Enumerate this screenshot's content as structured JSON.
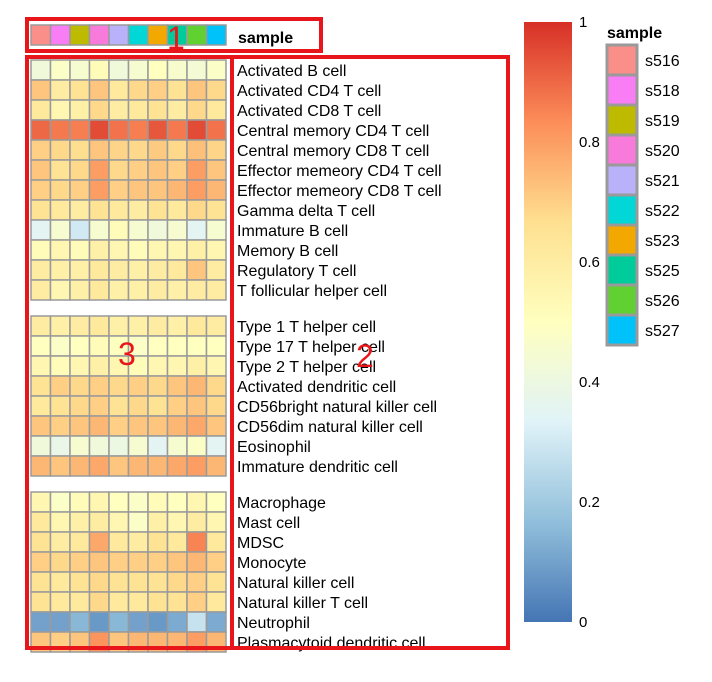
{
  "chart_data": {
    "type": "heatmap",
    "annotation_title": "sample",
    "samples": [
      "s516",
      "s518",
      "s519",
      "s520",
      "s521",
      "s522",
      "s523",
      "s525",
      "s526",
      "s527"
    ],
    "sample_colors": [
      "#FA8F8A",
      "#F97DF5",
      "#BDBA00",
      "#F87BDB",
      "#B9B2FB",
      "#00D7D6",
      "#F3A800",
      "#00CB9B",
      "#61D132",
      "#00C2FB"
    ],
    "row_groups": [
      {
        "rows": [
          {
            "label": "Activated B cell",
            "values": [
              0.42,
              0.48,
              0.45,
              0.52,
              0.42,
              0.45,
              0.5,
              0.46,
              0.44,
              0.48
            ]
          },
          {
            "label": "Activated CD4 T cell",
            "values": [
              0.72,
              0.6,
              0.65,
              0.72,
              0.62,
              0.68,
              0.7,
              0.65,
              0.72,
              0.68
            ]
          },
          {
            "label": "Activated CD8 T cell",
            "values": [
              0.62,
              0.55,
              0.58,
              0.68,
              0.6,
              0.62,
              0.65,
              0.6,
              0.68,
              0.62
            ]
          },
          {
            "label": "Central memory CD4 T cell",
            "values": [
              0.9,
              0.87,
              0.86,
              0.95,
              0.88,
              0.86,
              0.93,
              0.87,
              0.95,
              0.88
            ]
          },
          {
            "label": "Central memory CD8 T cell",
            "values": [
              0.7,
              0.68,
              0.67,
              0.72,
              0.69,
              0.68,
              0.71,
              0.68,
              0.73,
              0.69
            ]
          },
          {
            "label": "Effector memeory CD4 T cell",
            "values": [
              0.72,
              0.65,
              0.68,
              0.8,
              0.68,
              0.7,
              0.72,
              0.7,
              0.8,
              0.72
            ]
          },
          {
            "label": "Effector memeory CD8 T cell",
            "values": [
              0.7,
              0.68,
              0.7,
              0.8,
              0.7,
              0.72,
              0.72,
              0.75,
              0.8,
              0.75
            ]
          },
          {
            "label": "Gamma delta T cell",
            "values": [
              0.65,
              0.62,
              0.6,
              0.65,
              0.62,
              0.6,
              0.65,
              0.62,
              0.68,
              0.65
            ]
          },
          {
            "label": "Immature  B cell",
            "values": [
              0.35,
              0.45,
              0.3,
              0.45,
              0.52,
              0.45,
              0.42,
              0.45,
              0.35,
              0.45
            ]
          },
          {
            "label": "Memory B cell",
            "values": [
              0.52,
              0.55,
              0.52,
              0.58,
              0.55,
              0.52,
              0.55,
              0.55,
              0.58,
              0.55
            ]
          },
          {
            "label": "Regulatory T cell",
            "values": [
              0.6,
              0.58,
              0.58,
              0.62,
              0.6,
              0.58,
              0.6,
              0.62,
              0.72,
              0.6
            ]
          },
          {
            "label": "T follicular helper cell",
            "values": [
              0.6,
              0.55,
              0.58,
              0.62,
              0.58,
              0.58,
              0.6,
              0.58,
              0.6,
              0.6
            ]
          }
        ]
      },
      {
        "rows": [
          {
            "label": "Type 1 T helper cell",
            "values": [
              0.6,
              0.58,
              0.6,
              0.62,
              0.58,
              0.58,
              0.6,
              0.58,
              0.62,
              0.6
            ]
          },
          {
            "label": "Type 17 T helper cell",
            "values": [
              0.5,
              0.48,
              0.5,
              0.52,
              0.5,
              0.48,
              0.5,
              0.5,
              0.5,
              0.5
            ]
          },
          {
            "label": "Type 2 T helper cell",
            "values": [
              0.55,
              0.52,
              0.55,
              0.58,
              0.55,
              0.52,
              0.55,
              0.55,
              0.58,
              0.55
            ]
          },
          {
            "label": "Activated dendritic cell",
            "values": [
              0.65,
              0.7,
              0.68,
              0.7,
              0.68,
              0.7,
              0.68,
              0.72,
              0.75,
              0.68
            ]
          },
          {
            "label": "CD56bright natural killer cell",
            "values": [
              0.62,
              0.65,
              0.68,
              0.7,
              0.65,
              0.68,
              0.65,
              0.7,
              0.72,
              0.68
            ]
          },
          {
            "label": "CD56dim natural killer cell",
            "values": [
              0.72,
              0.7,
              0.72,
              0.75,
              0.7,
              0.72,
              0.72,
              0.75,
              0.78,
              0.72
            ]
          },
          {
            "label": "Eosinophil",
            "values": [
              0.42,
              0.38,
              0.45,
              0.42,
              0.4,
              0.45,
              0.35,
              0.45,
              0.48,
              0.35
            ]
          },
          {
            "label": "Immature dendritic cell",
            "values": [
              0.75,
              0.72,
              0.75,
              0.78,
              0.72,
              0.75,
              0.75,
              0.78,
              0.8,
              0.75
            ]
          }
        ]
      },
      {
        "rows": [
          {
            "label": "Macrophage",
            "values": [
              0.55,
              0.48,
              0.52,
              0.55,
              0.5,
              0.48,
              0.52,
              0.5,
              0.55,
              0.5
            ]
          },
          {
            "label": "Mast cell",
            "values": [
              0.62,
              0.55,
              0.58,
              0.6,
              0.55,
              0.48,
              0.58,
              0.55,
              0.6,
              0.55
            ]
          },
          {
            "label": "MDSC",
            "values": [
              0.65,
              0.6,
              0.62,
              0.78,
              0.62,
              0.6,
              0.65,
              0.62,
              0.85,
              0.62
            ]
          },
          {
            "label": "Monocyte",
            "values": [
              0.7,
              0.68,
              0.7,
              0.72,
              0.7,
              0.7,
              0.7,
              0.72,
              0.75,
              0.7
            ]
          },
          {
            "label": "Natural killer cell",
            "values": [
              0.65,
              0.62,
              0.65,
              0.68,
              0.65,
              0.65,
              0.65,
              0.68,
              0.7,
              0.65
            ]
          },
          {
            "label": "Natural killer T cell",
            "values": [
              0.65,
              0.62,
              0.62,
              0.68,
              0.62,
              0.62,
              0.65,
              0.65,
              0.7,
              0.62
            ]
          },
          {
            "label": "Neutrophil",
            "values": [
              0.1,
              0.1,
              0.15,
              0.08,
              0.15,
              0.1,
              0.08,
              0.12,
              0.28,
              0.12
            ]
          },
          {
            "label": "Plasmacytoid dendritic cell",
            "values": [
              0.72,
              0.7,
              0.72,
              0.82,
              0.72,
              0.75,
              0.75,
              0.75,
              0.8,
              0.75
            ]
          }
        ]
      }
    ],
    "colorbar": {
      "range": [
        0,
        1
      ],
      "ticks": [
        {
          "value": 1,
          "label": "1"
        },
        {
          "value": 0.8,
          "label": "0.8"
        },
        {
          "value": 0.6,
          "label": "0.6"
        },
        {
          "value": 0.4,
          "label": "0.4"
        },
        {
          "value": 0.2,
          "label": "0.2"
        },
        {
          "value": 0,
          "label": "0"
        }
      ],
      "palette": [
        "#4575B4",
        "#91BFDB",
        "#E0F3F8",
        "#FFFFBF",
        "#FEE090",
        "#FC8D59",
        "#D73027"
      ]
    },
    "annotations": [
      {
        "label": "1",
        "target": "sample annotation bar"
      },
      {
        "label": "2",
        "target": "row labels"
      },
      {
        "label": "3",
        "target": "heatmap cells"
      }
    ],
    "annotation_color": "#E8161B"
  }
}
